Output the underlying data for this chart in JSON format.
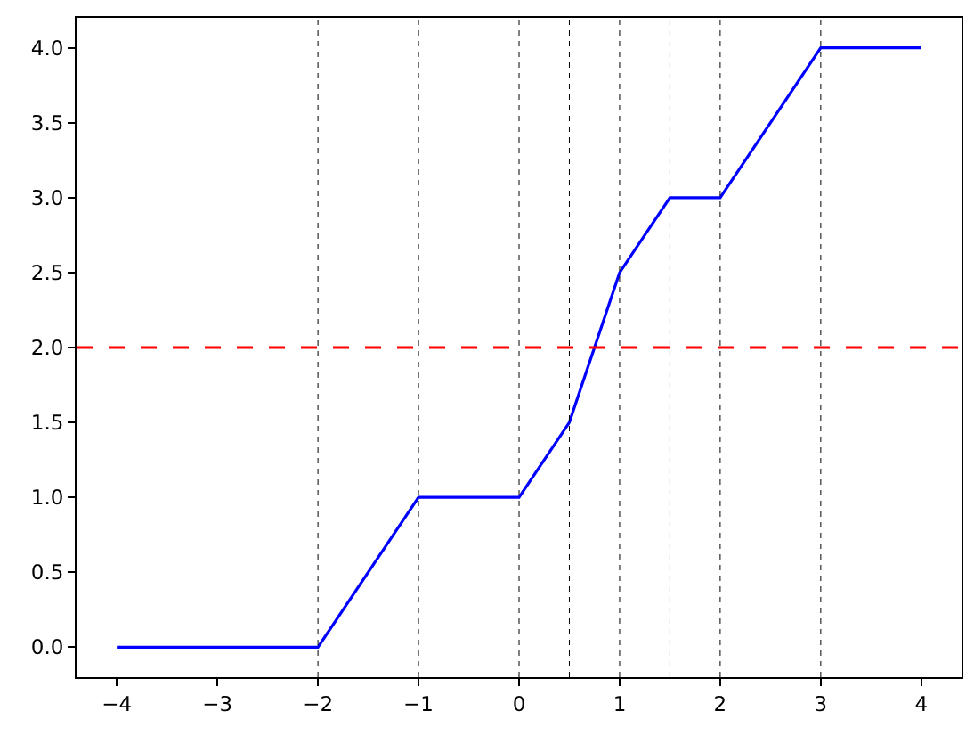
{
  "chart_data": {
    "type": "line",
    "x": [
      -4,
      -2,
      -1,
      0,
      0.5,
      1,
      1.5,
      2,
      3,
      4
    ],
    "series": [
      {
        "color": "#0000ff",
        "values": [
          0,
          0,
          1,
          1,
          1.5,
          2.5,
          3,
          3,
          4,
          4
        ]
      }
    ],
    "xlim": [
      -4.4,
      4.4
    ],
    "xticks": [
      {
        "value": -4,
        "label": "−4"
      },
      {
        "value": -3,
        "label": "−3"
      },
      {
        "value": -2,
        "label": "−2"
      },
      {
        "value": -1,
        "label": "−1"
      },
      0,
      1,
      2,
      3,
      4
    ],
    "ylim": [
      -0.2,
      4.2
    ],
    "yticks": [
      {
        "value": 0,
        "label": "0.0"
      },
      0.5,
      {
        "value": 1,
        "label": "1.0"
      },
      1.5,
      {
        "value": 2,
        "label": "2.0"
      },
      2.5,
      {
        "value": 3,
        "label": "3.0"
      },
      3.5,
      {
        "value": 4,
        "label": "4.0"
      }
    ],
    "ref_lines": [
      {
        "axis": "x",
        "value": -2,
        "color": "#000000",
        "line_style": "dotted"
      },
      {
        "axis": "x",
        "value": -1,
        "color": "#000000",
        "line_style": "dotted"
      },
      {
        "axis": "x",
        "value": 0,
        "color": "#000000",
        "line_style": "dotted"
      },
      {
        "axis": "x",
        "value": 0.5,
        "color": "#000000",
        "line_style": "dotted"
      },
      {
        "axis": "x",
        "value": 1,
        "color": "#000000",
        "line_style": "dotted"
      },
      {
        "axis": "x",
        "value": 1.5,
        "color": "#000000",
        "line_style": "dotted"
      },
      {
        "axis": "x",
        "value": 2,
        "color": "#000000",
        "line_style": "dotted"
      },
      {
        "axis": "x",
        "value": 3,
        "color": "#000000",
        "line_style": "dotted"
      },
      {
        "axis": "y",
        "value": 2,
        "color": "#ff0000",
        "line_style": "dashed"
      }
    ],
    "marker": "none",
    "line_style": "solid"
  }
}
